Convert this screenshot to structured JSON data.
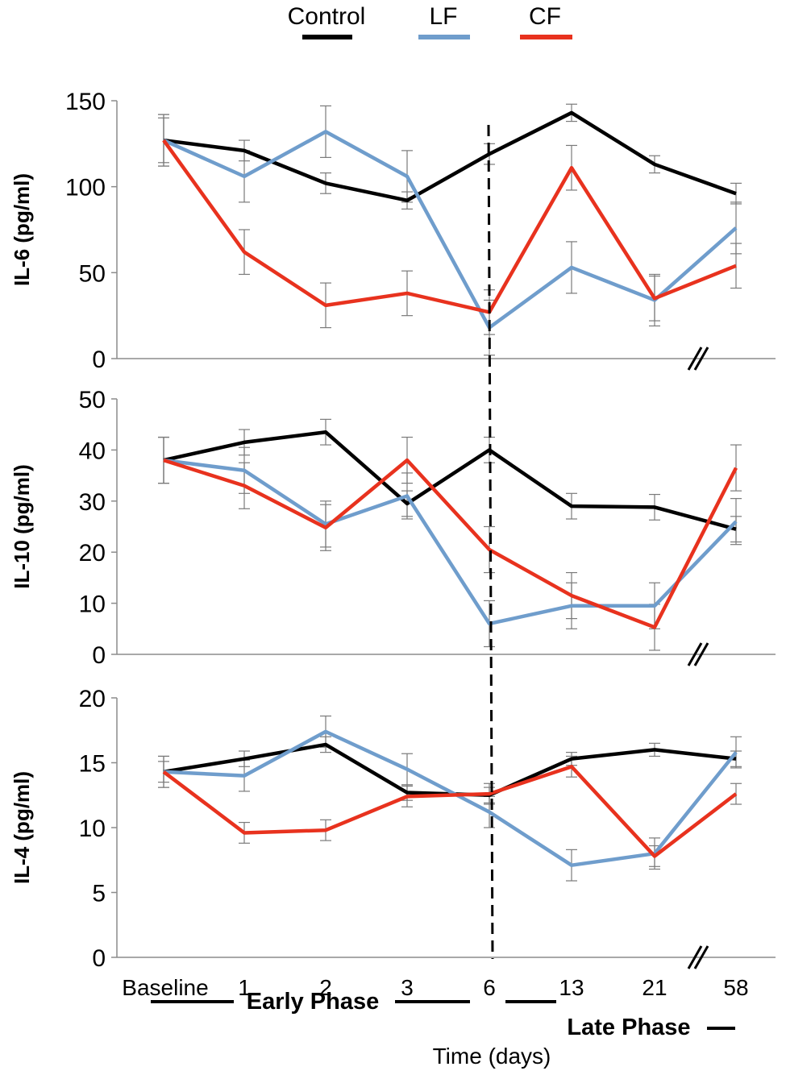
{
  "chart_data": {
    "type": "line",
    "categories": [
      "Baseline",
      "1",
      "2",
      "3",
      "6",
      "13",
      "21",
      "58"
    ],
    "xlabel": "Time (days)",
    "phases": {
      "early": "Early Phase",
      "late": "Late Phase"
    },
    "legend": [
      {
        "name": "Control",
        "color": "#000000"
      },
      {
        "name": "LF",
        "color": "#6f9dcc"
      },
      {
        "name": "CF",
        "color": "#e8321e"
      }
    ],
    "panels": [
      {
        "ylabel": "IL-6 (pg/ml)",
        "ylim": [
          0,
          150
        ],
        "yticks": [
          0,
          50,
          100,
          150
        ],
        "series": [
          {
            "name": "Control",
            "values": [
              127,
              121,
              102,
              92,
              119,
              143,
              113,
              96
            ],
            "errors": [
              15,
              6,
              6,
              5,
              6,
              5,
              5,
              6
            ]
          },
          {
            "name": "LF",
            "values": [
              127,
              106,
              132,
              106,
              18,
              53,
              34,
              76
            ],
            "errors": [
              15,
              15,
              15,
              15,
              16,
              15,
              15,
              15
            ]
          },
          {
            "name": "CF",
            "values": [
              127,
              62,
              31,
              38,
              27,
              111,
              35,
              54
            ],
            "errors": [
              13,
              13,
              13,
              13,
              13,
              13,
              13,
              13
            ]
          }
        ]
      },
      {
        "ylabel": "IL-10 (pg/ml)",
        "ylim": [
          0,
          50
        ],
        "yticks": [
          0,
          10,
          20,
          30,
          40,
          50
        ],
        "series": [
          {
            "name": "Control",
            "values": [
              38,
              41.5,
              43.5,
              29.5,
              40,
              29,
              28.8,
              24.5
            ],
            "errors": [
              4.5,
              2.5,
              2.5,
              2.5,
              2.5,
              2.5,
              2.5,
              2.5
            ]
          },
          {
            "name": "LF",
            "values": [
              38,
              36,
              25.5,
              31,
              6,
              9.5,
              9.5,
              26
            ],
            "errors": [
              4.5,
              4.5,
              4.5,
              4.5,
              4.5,
              4.5,
              4.5,
              4.5
            ]
          },
          {
            "name": "CF",
            "values": [
              38,
              33,
              24.8,
              38,
              20.5,
              11.5,
              5.3,
              36.5
            ],
            "errors": [
              4.5,
              4.5,
              4.5,
              4.5,
              4.5,
              4.5,
              4.5,
              4.5
            ]
          }
        ]
      },
      {
        "ylabel": "IL-4 (pg/ml)",
        "ylim": [
          0,
          20
        ],
        "yticks": [
          0,
          5,
          10,
          15,
          20
        ],
        "series": [
          {
            "name": "Control",
            "values": [
              14.3,
              15.3,
              16.4,
              12.7,
              12.5,
              15.3,
              16,
              15.3
            ],
            "errors": [
              1.2,
              0.6,
              0.6,
              0.6,
              0.6,
              0.5,
              0.5,
              0.6
            ]
          },
          {
            "name": "LF",
            "values": [
              14.3,
              14,
              17.4,
              14.5,
              11.2,
              7.1,
              8,
              15.8
            ],
            "errors": [
              1.2,
              1.2,
              1.2,
              1.2,
              1.2,
              1.2,
              1.2,
              1.2
            ]
          },
          {
            "name": "CF",
            "values": [
              14.3,
              9.6,
              9.8,
              12.4,
              12.6,
              14.7,
              7.8,
              12.6
            ],
            "errors": [
              0.8,
              0.8,
              0.8,
              0.8,
              0.8,
              0.8,
              0.8,
              0.8
            ]
          }
        ]
      }
    ]
  }
}
